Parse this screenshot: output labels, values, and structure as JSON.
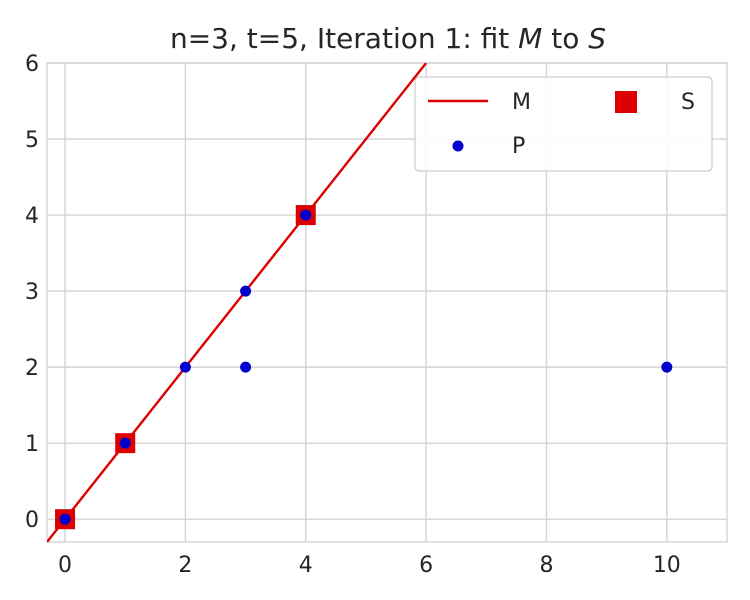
{
  "chart_data": {
    "type": "scatter",
    "title": {
      "prefix": "n=3, t=5, Iteration 1: fit ",
      "var1": "M",
      "middle": " to ",
      "var2": "S"
    },
    "xlim": [
      -0.3,
      11
    ],
    "ylim": [
      -0.3,
      6
    ],
    "xticks": [
      0,
      2,
      4,
      6,
      8,
      10
    ],
    "yticks": [
      0,
      1,
      2,
      3,
      4,
      5,
      6
    ],
    "grid": true,
    "legend": {
      "placement": "top-right",
      "columns": 2
    },
    "series": [
      {
        "name": "M",
        "kind": "line",
        "color": "#dd0000",
        "x": [
          -0.3,
          6.0
        ],
        "y": [
          -0.3,
          6.0
        ]
      },
      {
        "name": "P",
        "kind": "point",
        "color": "#0000cc",
        "x": [
          0,
          1,
          2,
          3,
          3,
          4,
          10
        ],
        "y": [
          0,
          1,
          2,
          3,
          2,
          4,
          2
        ]
      },
      {
        "name": "S",
        "kind": "square",
        "color": "#dd0000",
        "x": [
          0,
          1,
          4
        ],
        "y": [
          0,
          1,
          4
        ]
      }
    ]
  }
}
